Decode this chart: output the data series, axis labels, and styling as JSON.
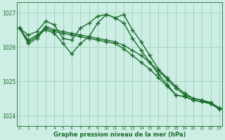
{
  "xlabel": "Graphe pression niveau de la mer (hPa)",
  "bg_color": "#cceee4",
  "line_color": "#1a6b2a",
  "grid_color": "#99ccb3",
  "ylim": [
    1023.7,
    1027.3
  ],
  "yticks": [
    1024,
    1025,
    1026,
    1027
  ],
  "xlim": [
    -0.3,
    23.3
  ],
  "xticks": [
    0,
    1,
    2,
    3,
    4,
    5,
    6,
    7,
    8,
    9,
    10,
    11,
    12,
    13,
    14,
    15,
    16,
    17,
    18,
    19,
    20,
    21,
    22,
    23
  ],
  "series": [
    [
      1026.55,
      1026.35,
      1026.45,
      1026.75,
      1026.65,
      1026.25,
      1026.2,
      1026.55,
      1026.7,
      1026.9,
      1026.95,
      1026.85,
      1026.95,
      1026.5,
      1026.15,
      1025.75,
      1025.35,
      1025.1,
      1024.85,
      1024.65,
      1024.5,
      1024.45,
      1024.35,
      1024.2
    ],
    [
      1026.55,
      1026.2,
      1026.35,
      1026.5,
      1026.4,
      1026.1,
      1025.8,
      1026.1,
      1026.3,
      1026.7,
      1026.95,
      1026.85,
      1026.7,
      1026.25,
      1025.9,
      1025.55,
      1025.2,
      1024.9,
      1024.6,
      1024.55,
      1024.45,
      1024.4,
      1024.35,
      1024.2
    ],
    [
      1026.55,
      1026.15,
      1026.3,
      1026.6,
      1026.5,
      1026.45,
      1026.4,
      1026.35,
      1026.3,
      1026.25,
      1026.2,
      1026.15,
      1026.05,
      1025.9,
      1025.75,
      1025.55,
      1025.3,
      1025.05,
      1024.8,
      1024.6,
      1024.5,
      1024.45,
      1024.38,
      1024.22
    ],
    [
      1026.55,
      1026.1,
      1026.25,
      1026.55,
      1026.45,
      1026.4,
      1026.35,
      1026.3,
      1026.25,
      1026.2,
      1026.15,
      1026.1,
      1025.95,
      1025.75,
      1025.55,
      1025.35,
      1025.1,
      1024.85,
      1024.6,
      1024.55,
      1024.45,
      1024.4,
      1024.35,
      1024.18
    ]
  ],
  "marker": "+",
  "markersize": 5,
  "linewidth": 1.0
}
